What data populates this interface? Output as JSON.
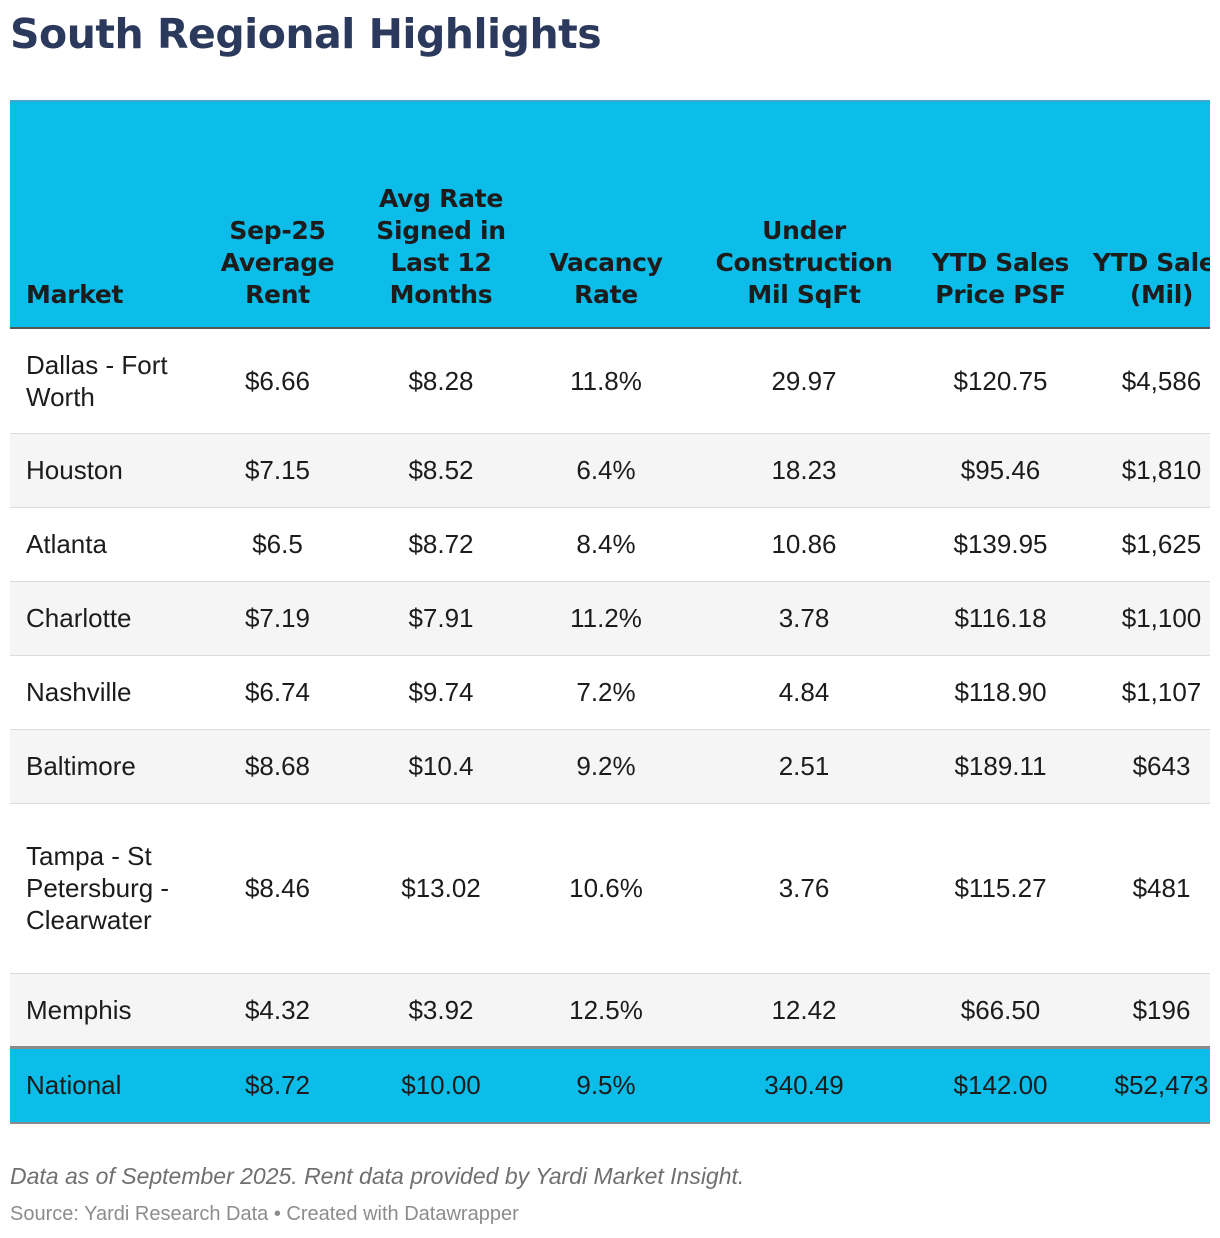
{
  "title": "South Regional Highlights",
  "table": {
    "columns": [
      "Market",
      "Sep-25 Average Rent",
      "Avg Rate Signed in Last 12 Months",
      "Vacancy Rate",
      "Under Construction Mil SqFt",
      "YTD Sales Price PSF",
      "YTD Sales (Mil)"
    ],
    "rows": [
      [
        "Dallas - Fort Worth",
        "$6.66",
        "$8.28",
        "11.8%",
        "29.97",
        "$120.75",
        "$4,586"
      ],
      [
        "Houston",
        "$7.15",
        "$8.52",
        "6.4%",
        "18.23",
        "$95.46",
        "$1,810"
      ],
      [
        "Atlanta",
        "$6.5",
        "$8.72",
        "8.4%",
        "10.86",
        "$139.95",
        "$1,625"
      ],
      [
        "Charlotte",
        "$7.19",
        "$7.91",
        "11.2%",
        "3.78",
        "$116.18",
        "$1,100"
      ],
      [
        "Nashville",
        "$6.74",
        "$9.74",
        "7.2%",
        "4.84",
        "$118.90",
        "$1,107"
      ],
      [
        "Baltimore",
        "$8.68",
        "$10.4",
        "9.2%",
        "2.51",
        "$189.11",
        "$643"
      ],
      [
        "Tampa - St Petersburg - Clearwater",
        "$8.46",
        "$13.02",
        "10.6%",
        "3.76",
        "$115.27",
        "$481"
      ],
      [
        "Memphis",
        "$4.32",
        "$3.92",
        "12.5%",
        "12.42",
        "$66.50",
        "$196"
      ]
    ],
    "national": [
      "National",
      "$8.72",
      "$10.00",
      "9.5%",
      "340.49",
      "$142.00",
      "$52,473"
    ]
  },
  "notes": "Data as of September 2025. Rent data provided by Yardi Market Insight.",
  "source": "Source: Yardi Research Data • Created with Datawrapper",
  "colors": {
    "title": "#2b3a5c",
    "header_bg": "#0bbde8",
    "row_alt_bg": "#f5f5f5"
  }
}
